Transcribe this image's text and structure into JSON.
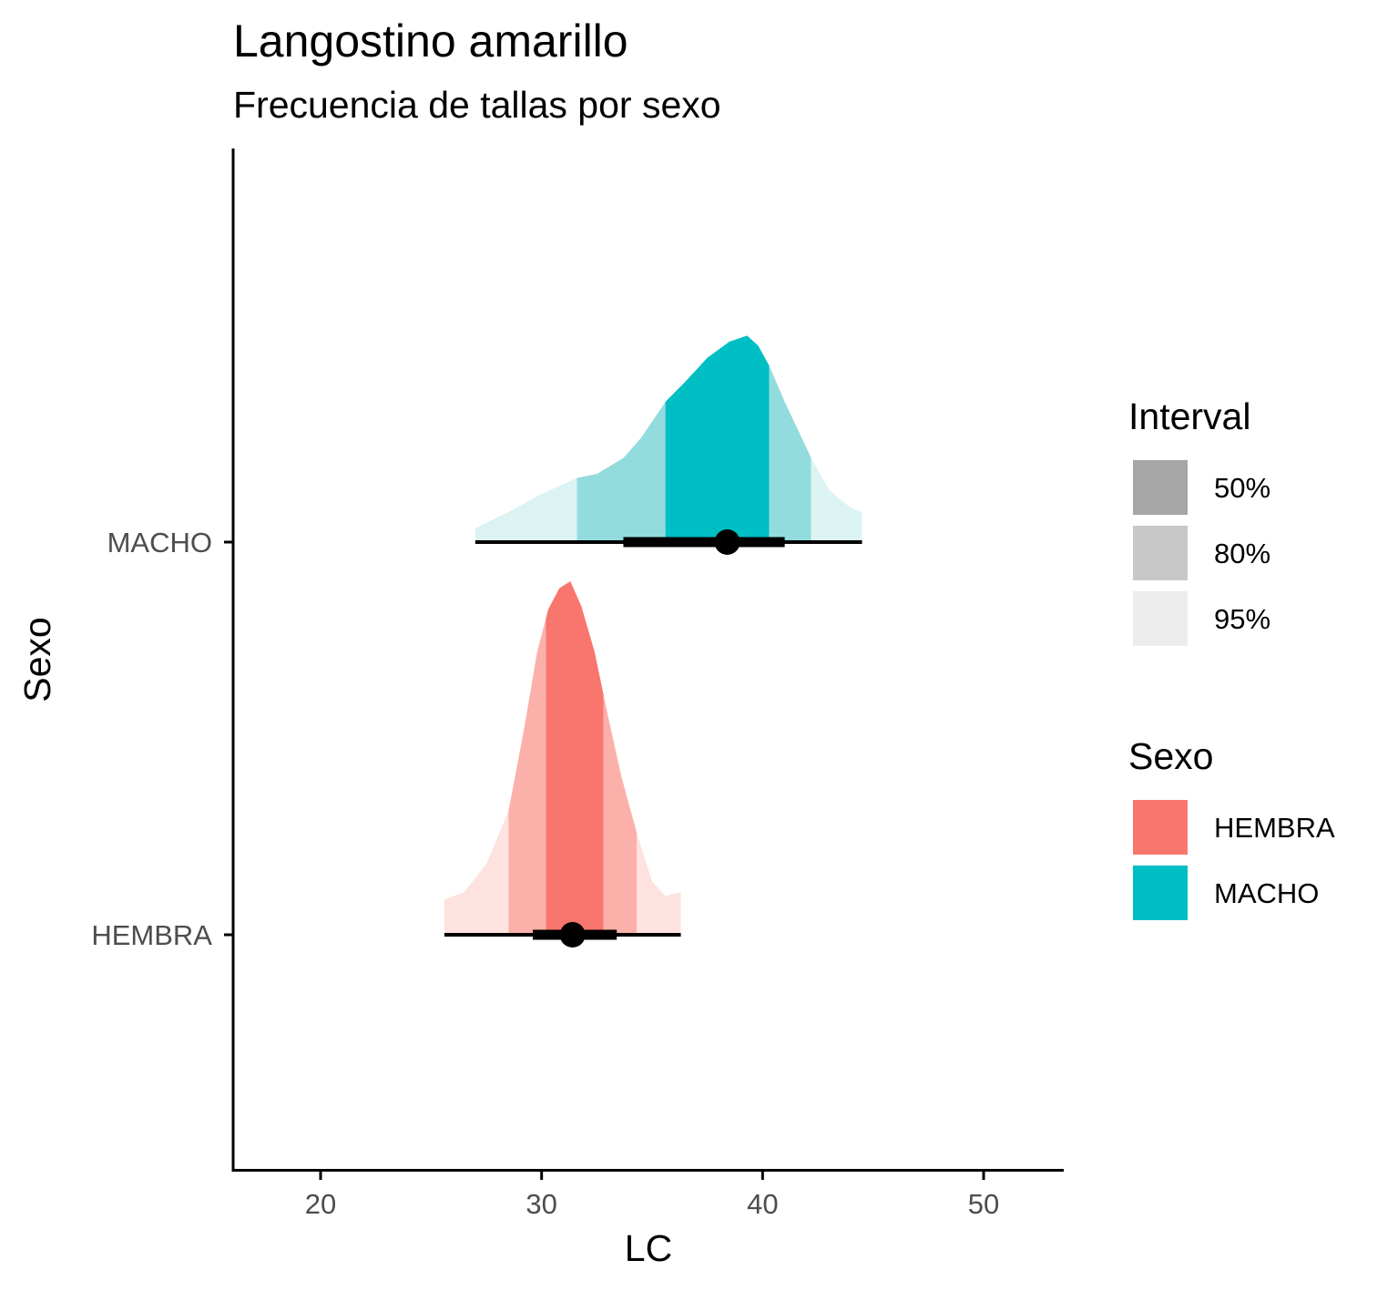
{
  "chart_data": {
    "type": "area",
    "title": "Langostino amarillo",
    "subtitle": "Frecuencia de tallas por sexo",
    "xlabel": "LC",
    "ylabel": "Sexo",
    "xlim": [
      16,
      53.5
    ],
    "x_ticks": [
      20,
      30,
      40,
      50
    ],
    "categories": [
      "HEMBRA",
      "MACHO"
    ],
    "grid": false,
    "legend_position": "right",
    "interval_legend": {
      "title": "Interval",
      "items": [
        {
          "label": "50%",
          "color": "#a6a6a6"
        },
        {
          "label": "80%",
          "color": "#c8c8c8"
        },
        {
          "label": "95%",
          "color": "#ececec"
        }
      ]
    },
    "fill_legend": {
      "title": "Sexo",
      "items": [
        {
          "label": "HEMBRA",
          "color": "#F8766D"
        },
        {
          "label": "MACHO",
          "color": "#00BFC4"
        }
      ]
    },
    "series": [
      {
        "name": "HEMBRA",
        "color": "#F8766D",
        "shade_80": "#fbb0a9",
        "shade_95": "#fde2df",
        "point": 31.4,
        "interval_50": [
          30.2,
          32.8
        ],
        "interval_66": [
          29.6,
          33.4
        ],
        "interval_80": [
          28.5,
          34.3
        ],
        "interval_95": [
          25.6,
          36.3
        ],
        "density": [
          [
            25.6,
            0.1
          ],
          [
            26.5,
            0.12
          ],
          [
            27.5,
            0.2
          ],
          [
            28.5,
            0.35
          ],
          [
            29.2,
            0.58
          ],
          [
            29.8,
            0.8
          ],
          [
            30.3,
            0.92
          ],
          [
            30.8,
            0.98
          ],
          [
            31.3,
            1.0
          ],
          [
            31.8,
            0.93
          ],
          [
            32.4,
            0.8
          ],
          [
            33.0,
            0.62
          ],
          [
            33.6,
            0.45
          ],
          [
            34.3,
            0.29
          ],
          [
            35.0,
            0.15
          ],
          [
            35.6,
            0.11
          ],
          [
            36.3,
            0.12
          ]
        ]
      },
      {
        "name": "MACHO",
        "color": "#00BFC4",
        "shade_80": "#93dcdd",
        "shade_95": "#dcf3f3",
        "point": 38.4,
        "interval_50": [
          35.6,
          40.3
        ],
        "interval_66": [
          33.7,
          41.0
        ],
        "interval_80": [
          31.6,
          42.2
        ],
        "interval_95": [
          27.0,
          44.5
        ],
        "density": [
          [
            27.0,
            0.07
          ],
          [
            28.5,
            0.15
          ],
          [
            30.0,
            0.24
          ],
          [
            31.6,
            0.32
          ],
          [
            32.5,
            0.34
          ],
          [
            33.7,
            0.42
          ],
          [
            34.5,
            0.52
          ],
          [
            35.6,
            0.7
          ],
          [
            36.5,
            0.8
          ],
          [
            37.5,
            0.92
          ],
          [
            38.5,
            1.0
          ],
          [
            39.3,
            1.03
          ],
          [
            39.8,
            0.98
          ],
          [
            40.3,
            0.88
          ],
          [
            41.0,
            0.7
          ],
          [
            42.2,
            0.42
          ],
          [
            43.0,
            0.26
          ],
          [
            44.0,
            0.17
          ],
          [
            44.5,
            0.15
          ]
        ]
      }
    ]
  }
}
